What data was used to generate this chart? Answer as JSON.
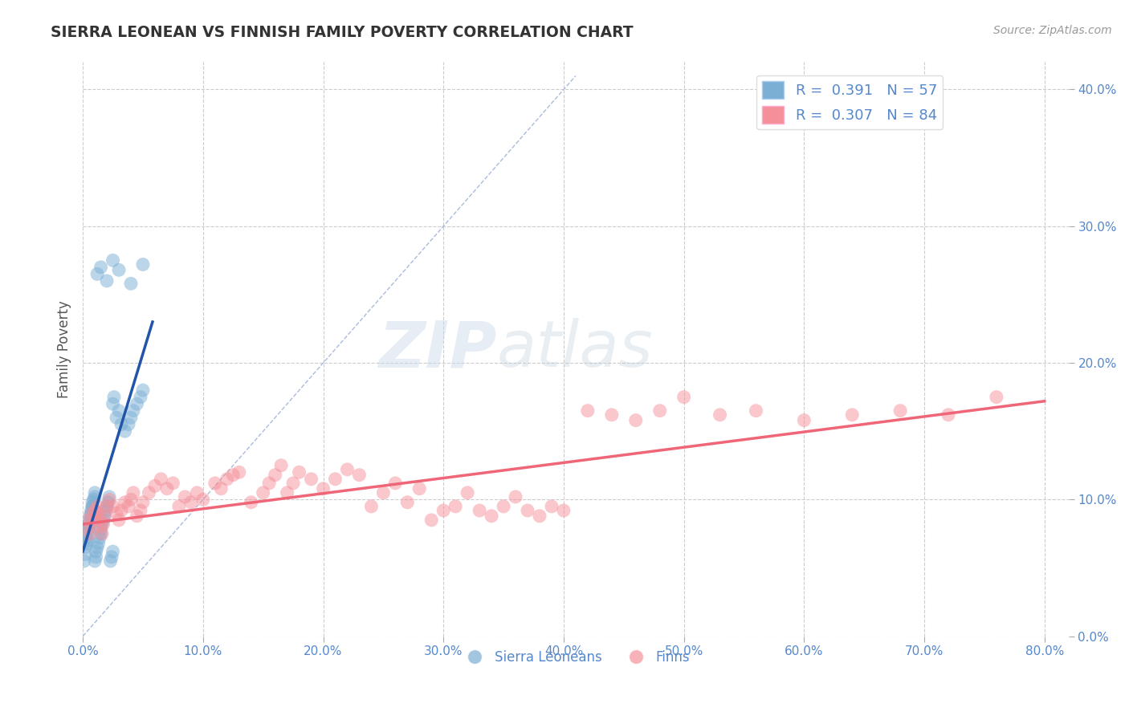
{
  "title": "SIERRA LEONEAN VS FINNISH FAMILY POVERTY CORRELATION CHART",
  "source_text": "Source: ZipAtlas.com",
  "ylabel": "Family Poverty",
  "watermark_zip": "ZIP",
  "watermark_atlas": "atlas",
  "xlim": [
    0.0,
    0.82
  ],
  "ylim": [
    0.0,
    0.42
  ],
  "xticks": [
    0.0,
    0.1,
    0.2,
    0.3,
    0.4,
    0.5,
    0.6,
    0.7,
    0.8
  ],
  "xtick_labels": [
    "0.0%",
    "10.0%",
    "20.0%",
    "30.0%",
    "40.0%",
    "50.0%",
    "60.0%",
    "70.0%",
    "80.0%"
  ],
  "yticks_right": [
    0.0,
    0.1,
    0.2,
    0.3,
    0.4
  ],
  "ytick_labels_right": [
    "0.0%",
    "10.0%",
    "20.0%",
    "30.0%",
    "40.0%"
  ],
  "legend_r1": "R =  0.391   N = 57",
  "legend_r2": "R =  0.307   N = 84",
  "legend_label1": "Sierra Leoneans",
  "legend_label2": "Finns",
  "blue_color": "#7BAFD4",
  "pink_color": "#F4909A",
  "blue_line_color": "#2255AA",
  "pink_line_color": "#EE6677",
  "blue_scatter_x": [
    0.001,
    0.002,
    0.002,
    0.003,
    0.003,
    0.004,
    0.004,
    0.005,
    0.005,
    0.005,
    0.006,
    0.006,
    0.007,
    0.007,
    0.008,
    0.008,
    0.008,
    0.009,
    0.01,
    0.01,
    0.01,
    0.011,
    0.011,
    0.012,
    0.013,
    0.014,
    0.015,
    0.015,
    0.016,
    0.017,
    0.018,
    0.019,
    0.02,
    0.021,
    0.022,
    0.023,
    0.024,
    0.025,
    0.025,
    0.026,
    0.028,
    0.03,
    0.032,
    0.035,
    0.038,
    0.04,
    0.042,
    0.045,
    0.048,
    0.05,
    0.012,
    0.015,
    0.02,
    0.025,
    0.03,
    0.04,
    0.05
  ],
  "blue_scatter_y": [
    0.055,
    0.06,
    0.065,
    0.068,
    0.072,
    0.07,
    0.075,
    0.078,
    0.08,
    0.082,
    0.085,
    0.088,
    0.09,
    0.092,
    0.095,
    0.095,
    0.098,
    0.1,
    0.102,
    0.105,
    0.055,
    0.058,
    0.062,
    0.065,
    0.068,
    0.072,
    0.075,
    0.078,
    0.082,
    0.085,
    0.088,
    0.092,
    0.095,
    0.098,
    0.102,
    0.055,
    0.058,
    0.062,
    0.17,
    0.175,
    0.16,
    0.165,
    0.155,
    0.15,
    0.155,
    0.16,
    0.165,
    0.17,
    0.175,
    0.18,
    0.265,
    0.27,
    0.26,
    0.275,
    0.268,
    0.258,
    0.272
  ],
  "pink_scatter_x": [
    0.004,
    0.005,
    0.006,
    0.008,
    0.009,
    0.01,
    0.011,
    0.012,
    0.013,
    0.014,
    0.015,
    0.016,
    0.017,
    0.018,
    0.02,
    0.022,
    0.025,
    0.028,
    0.03,
    0.032,
    0.035,
    0.038,
    0.04,
    0.042,
    0.045,
    0.048,
    0.05,
    0.055,
    0.06,
    0.065,
    0.07,
    0.075,
    0.08,
    0.085,
    0.09,
    0.095,
    0.1,
    0.11,
    0.115,
    0.12,
    0.125,
    0.13,
    0.14,
    0.15,
    0.155,
    0.16,
    0.165,
    0.17,
    0.175,
    0.18,
    0.19,
    0.2,
    0.21,
    0.22,
    0.23,
    0.24,
    0.25,
    0.26,
    0.27,
    0.28,
    0.29,
    0.3,
    0.31,
    0.32,
    0.33,
    0.34,
    0.35,
    0.36,
    0.37,
    0.38,
    0.39,
    0.4,
    0.42,
    0.44,
    0.46,
    0.48,
    0.5,
    0.53,
    0.56,
    0.6,
    0.64,
    0.68,
    0.72,
    0.76
  ],
  "pink_scatter_y": [
    0.085,
    0.08,
    0.075,
    0.09,
    0.085,
    0.092,
    0.088,
    0.095,
    0.09,
    0.085,
    0.08,
    0.075,
    0.082,
    0.088,
    0.095,
    0.1,
    0.095,
    0.09,
    0.085,
    0.092,
    0.098,
    0.095,
    0.1,
    0.105,
    0.088,
    0.092,
    0.098,
    0.105,
    0.11,
    0.115,
    0.108,
    0.112,
    0.095,
    0.102,
    0.098,
    0.105,
    0.1,
    0.112,
    0.108,
    0.115,
    0.118,
    0.12,
    0.098,
    0.105,
    0.112,
    0.118,
    0.125,
    0.105,
    0.112,
    0.12,
    0.115,
    0.108,
    0.115,
    0.122,
    0.118,
    0.095,
    0.105,
    0.112,
    0.098,
    0.108,
    0.085,
    0.092,
    0.095,
    0.105,
    0.092,
    0.088,
    0.095,
    0.102,
    0.092,
    0.088,
    0.095,
    0.092,
    0.165,
    0.162,
    0.158,
    0.165,
    0.175,
    0.162,
    0.165,
    0.158,
    0.162,
    0.165,
    0.162,
    0.175
  ],
  "blue_line_x": [
    0.0,
    0.058
  ],
  "blue_line_y": [
    0.062,
    0.23
  ],
  "pink_line_x": [
    0.0,
    0.8
  ],
  "pink_line_y": [
    0.082,
    0.172
  ],
  "ref_line_x": [
    0.0,
    0.41
  ],
  "ref_line_y": [
    0.0,
    0.41
  ],
  "grid_color": "#CCCCCC",
  "background_color": "#FFFFFF",
  "title_color": "#333333",
  "axis_tick_color": "#5588CC",
  "right_axis_color": "#5588CC"
}
